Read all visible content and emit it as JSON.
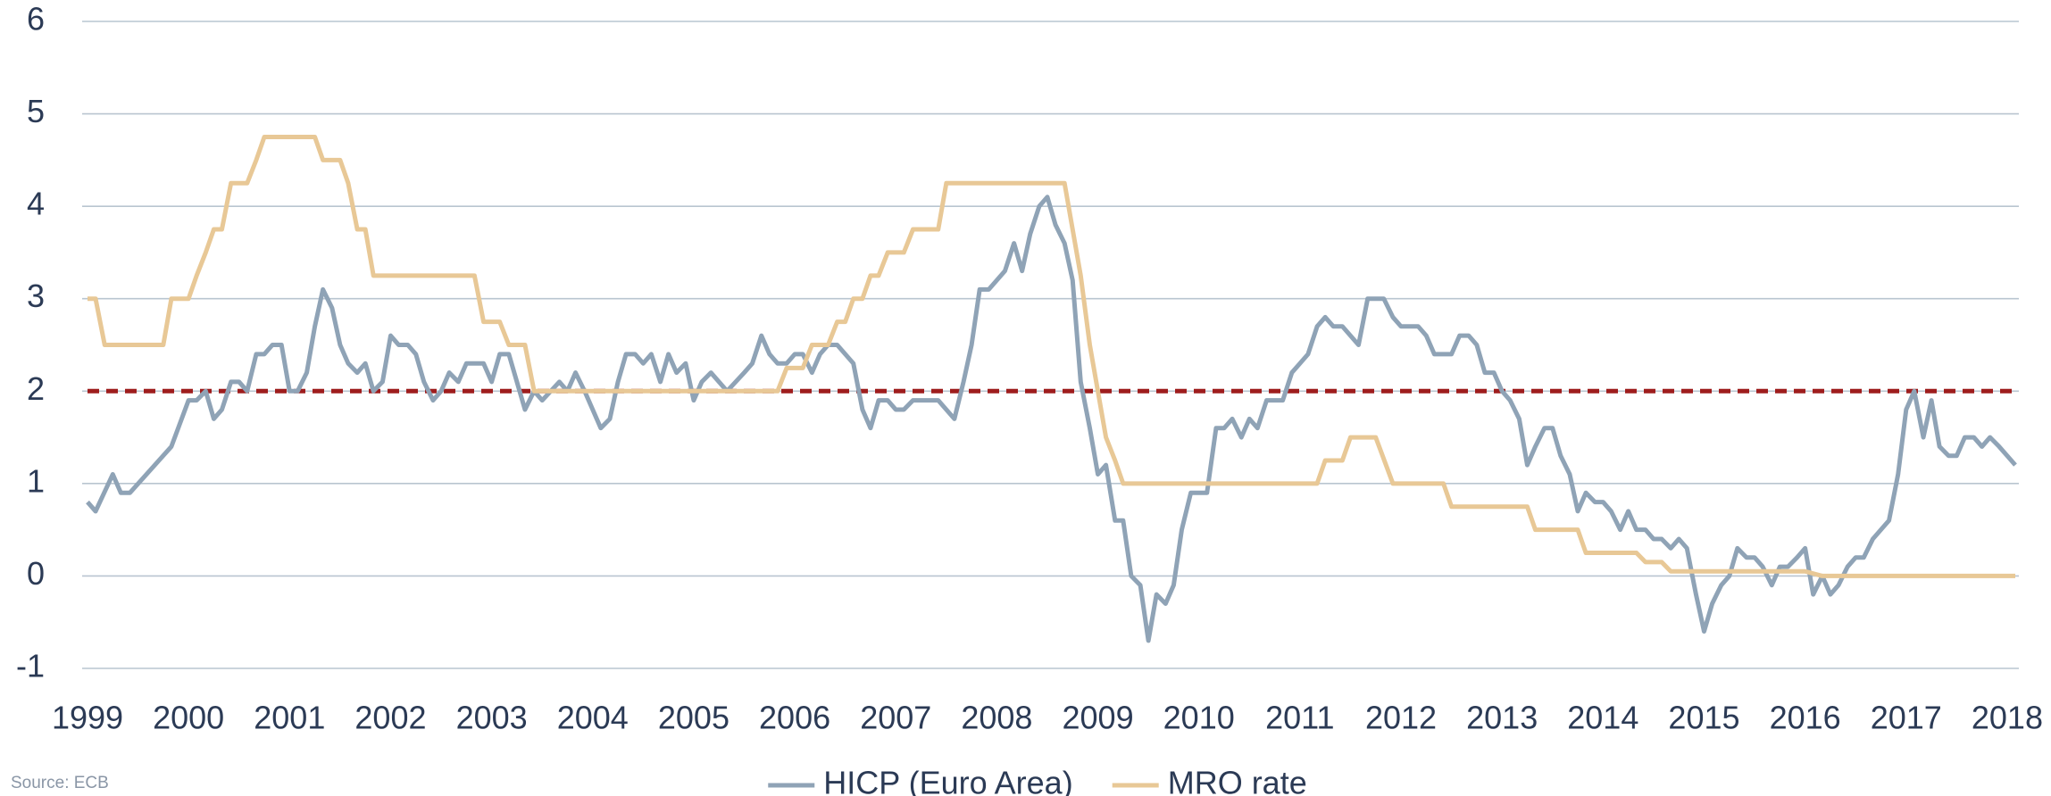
{
  "chart_data": {
    "type": "line",
    "source": "Source: ECB",
    "xlim": [
      1999,
      2018.08
    ],
    "xticks": [
      1999,
      2000,
      2001,
      2002,
      2003,
      2004,
      2005,
      2006,
      2007,
      2008,
      2009,
      2010,
      2011,
      2012,
      2013,
      2014,
      2015,
      2016,
      2017,
      2018
    ],
    "ylim": [
      -1,
      6
    ],
    "yticks": [
      -1,
      0,
      1,
      2,
      3,
      4,
      5,
      6
    ],
    "grid": true,
    "legend": "bottom",
    "reference_line": {
      "value": 2,
      "color": "#9e1d1d"
    },
    "series": [
      {
        "name": "HICP (Euro Area)",
        "color": "#8fa3b6",
        "x": [
          1999,
          1999.08,
          1999.25,
          1999.33,
          1999.42,
          1999.83,
          2000,
          2000.08,
          2000.17,
          2000.25,
          2000.33,
          2000.42,
          2000.5,
          2000.58,
          2000.67,
          2000.75,
          2000.83,
          2000.92,
          2001,
          2001.08,
          2001.17,
          2001.25,
          2001.33,
          2001.42,
          2001.5,
          2001.58,
          2001.67,
          2001.75,
          2001.83,
          2001.92,
          2002,
          2002.08,
          2002.17,
          2002.25,
          2002.33,
          2002.42,
          2002.5,
          2002.58,
          2002.67,
          2002.75,
          2002.92,
          2003,
          2003.08,
          2003.17,
          2003.25,
          2003.33,
          2003.42,
          2003.5,
          2003.67,
          2003.75,
          2003.83,
          2003.92,
          2004,
          2004.08,
          2004.17,
          2004.25,
          2004.33,
          2004.42,
          2004.5,
          2004.58,
          2004.67,
          2004.75,
          2004.83,
          2004.92,
          2005,
          2005.08,
          2005.17,
          2005.33,
          2005.5,
          2005.58,
          2005.67,
          2005.75,
          2005.83,
          2005.92,
          2006,
          2006.08,
          2006.17,
          2006.25,
          2006.33,
          2006.42,
          2006.5,
          2006.58,
          2006.67,
          2006.75,
          2006.83,
          2006.92,
          2007,
          2007.08,
          2007.17,
          2007.42,
          2007.5,
          2007.58,
          2007.67,
          2007.75,
          2007.83,
          2007.92,
          2008,
          2008.08,
          2008.17,
          2008.25,
          2008.33,
          2008.42,
          2008.5,
          2008.58,
          2008.67,
          2008.75,
          2008.83,
          2008.92,
          2009,
          2009.08,
          2009.17,
          2009.25,
          2009.33,
          2009.42,
          2009.5,
          2009.58,
          2009.67,
          2009.75,
          2009.83,
          2009.92,
          2010.08,
          2010.17,
          2010.25,
          2010.33,
          2010.42,
          2010.5,
          2010.58,
          2010.67,
          2010.83,
          2010.92,
          2011,
          2011.08,
          2011.17,
          2011.25,
          2011.33,
          2011.42,
          2011.5,
          2011.58,
          2011.67,
          2011.83,
          2011.92,
          2012,
          2012.17,
          2012.25,
          2012.33,
          2012.5,
          2012.58,
          2012.67,
          2012.75,
          2012.83,
          2012.92,
          2013,
          2013.08,
          2013.17,
          2013.25,
          2013.33,
          2013.42,
          2013.5,
          2013.58,
          2013.67,
          2013.75,
          2013.83,
          2013.92,
          2014,
          2014.08,
          2014.17,
          2014.25,
          2014.33,
          2014.42,
          2014.5,
          2014.58,
          2014.67,
          2014.75,
          2014.83,
          2014.92,
          2015,
          2015.08,
          2015.17,
          2015.25,
          2015.33,
          2015.42,
          2015.5,
          2015.58,
          2015.67,
          2015.75,
          2015.83,
          2015.92,
          2016,
          2016.08,
          2016.17,
          2016.25,
          2016.33,
          2016.42,
          2016.5,
          2016.58,
          2016.67,
          2016.75,
          2016.83,
          2016.92,
          2017,
          2017.08,
          2017.17,
          2017.25,
          2017.33,
          2017.42,
          2017.5,
          2017.58,
          2017.67,
          2017.75,
          2017.83,
          2017.92,
          2018,
          2018.08
        ],
        "values": [
          0.8,
          0.7,
          1.1,
          0.9,
          0.9,
          1.4,
          1.9,
          1.9,
          2.0,
          1.7,
          1.8,
          2.1,
          2.1,
          2.0,
          2.4,
          2.4,
          2.5,
          2.5,
          2.0,
          2.0,
          2.2,
          2.7,
          3.1,
          2.9,
          2.5,
          2.3,
          2.2,
          2.3,
          2.0,
          2.1,
          2.6,
          2.5,
          2.5,
          2.4,
          2.1,
          1.9,
          2.0,
          2.2,
          2.1,
          2.3,
          2.3,
          2.1,
          2.4,
          2.4,
          2.1,
          1.8,
          2.0,
          1.9,
          2.1,
          2.0,
          2.2,
          2.0,
          1.8,
          1.6,
          1.7,
          2.1,
          2.4,
          2.4,
          2.3,
          2.4,
          2.1,
          2.4,
          2.2,
          2.3,
          1.9,
          2.1,
          2.2,
          2.0,
          2.2,
          2.3,
          2.6,
          2.4,
          2.3,
          2.3,
          2.4,
          2.4,
          2.2,
          2.4,
          2.5,
          2.5,
          2.4,
          2.3,
          1.8,
          1.6,
          1.9,
          1.9,
          1.8,
          1.8,
          1.9,
          1.9,
          1.8,
          1.7,
          2.1,
          2.5,
          3.1,
          3.1,
          3.2,
          3.3,
          3.6,
          3.3,
          3.7,
          4.0,
          4.1,
          3.8,
          3.6,
          3.2,
          2.1,
          1.6,
          1.1,
          1.2,
          0.6,
          0.6,
          0.0,
          -0.1,
          -0.7,
          -0.2,
          -0.3,
          -0.1,
          0.5,
          0.9,
          0.9,
          1.6,
          1.6,
          1.7,
          1.5,
          1.7,
          1.6,
          1.9,
          1.9,
          2.2,
          2.3,
          2.4,
          2.7,
          2.8,
          2.7,
          2.7,
          2.6,
          2.5,
          3.0,
          3.0,
          2.8,
          2.7,
          2.7,
          2.6,
          2.4,
          2.4,
          2.6,
          2.6,
          2.5,
          2.2,
          2.2,
          2.0,
          1.9,
          1.7,
          1.2,
          1.4,
          1.6,
          1.6,
          1.3,
          1.1,
          0.7,
          0.9,
          0.8,
          0.8,
          0.7,
          0.5,
          0.7,
          0.5,
          0.5,
          0.4,
          0.4,
          0.3,
          0.4,
          0.3,
          -0.2,
          -0.6,
          -0.3,
          -0.1,
          0.0,
          0.3,
          0.2,
          0.2,
          0.1,
          -0.1,
          0.1,
          0.1,
          0.2,
          0.3,
          -0.2,
          0.0,
          -0.2,
          -0.1,
          0.1,
          0.2,
          0.2,
          0.4,
          0.5,
          0.6,
          1.1,
          1.8,
          2.0,
          1.5,
          1.9,
          1.4,
          1.3,
          1.3,
          1.5,
          1.5,
          1.4,
          1.5,
          1.4,
          1.3,
          1.2
        ]
      },
      {
        "name": "MRO rate",
        "color": "#e8c896",
        "x": [
          1999,
          1999.08,
          1999.17,
          1999.75,
          1999.83,
          2000,
          2000.08,
          2000.17,
          2000.25,
          2000.33,
          2000.42,
          2000.58,
          2000.67,
          2000.75,
          2001.25,
          2001.33,
          2001.5,
          2001.58,
          2001.67,
          2001.75,
          2001.83,
          2002.83,
          2002.92,
          2003.08,
          2003.17,
          2003.33,
          2003.42,
          2005.83,
          2005.92,
          2006.08,
          2006.17,
          2006.33,
          2006.42,
          2006.5,
          2006.58,
          2006.67,
          2006.75,
          2006.83,
          2006.92,
          2007.08,
          2007.17,
          2007.42,
          2007.5,
          2008.67,
          2008.75,
          2008.83,
          2008.92,
          2009,
          2009.08,
          2009.17,
          2009.25,
          2011.17,
          2011.25,
          2011.42,
          2011.5,
          2011.75,
          2011.92,
          2012.42,
          2012.5,
          2013.25,
          2013.33,
          2013.75,
          2013.83,
          2014.33,
          2014.42,
          2014.58,
          2014.67,
          2016,
          2016.17,
          2018.08
        ],
        "values": [
          3.0,
          3.0,
          2.5,
          2.5,
          3.0,
          3.0,
          3.25,
          3.5,
          3.75,
          3.75,
          4.25,
          4.25,
          4.5,
          4.75,
          4.75,
          4.5,
          4.5,
          4.25,
          3.75,
          3.75,
          3.25,
          3.25,
          2.75,
          2.75,
          2.5,
          2.5,
          2.0,
          2.0,
          2.25,
          2.25,
          2.5,
          2.5,
          2.75,
          2.75,
          3.0,
          3.0,
          3.25,
          3.25,
          3.5,
          3.5,
          3.75,
          3.75,
          4.25,
          4.25,
          3.75,
          3.25,
          2.5,
          2.0,
          1.5,
          1.25,
          1.0,
          1.0,
          1.25,
          1.25,
          1.5,
          1.5,
          1.0,
          1.0,
          0.75,
          0.75,
          0.5,
          0.5,
          0.25,
          0.25,
          0.15,
          0.15,
          0.05,
          0.05,
          0.0,
          0.0
        ]
      }
    ]
  }
}
